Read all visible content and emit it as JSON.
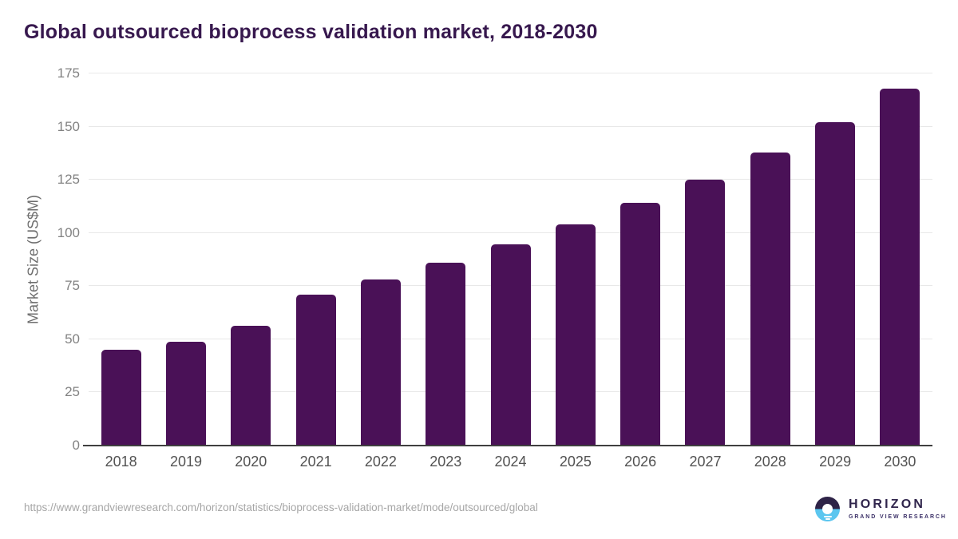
{
  "title": "Global outsourced bioprocess validation market, 2018-2030",
  "chart_data": {
    "type": "bar",
    "title": "Global outsourced bioprocess validation market, 2018-2030",
    "categories": [
      "2018",
      "2019",
      "2020",
      "2021",
      "2022",
      "2023",
      "2024",
      "2025",
      "2026",
      "2027",
      "2028",
      "2029",
      "2030"
    ],
    "values": [
      45,
      49,
      56.5,
      71,
      78,
      86,
      94.5,
      104,
      114,
      125,
      138,
      152,
      168
    ],
    "xlabel": "",
    "ylabel": "Market Size (US$M)",
    "ylim": [
      0,
      175
    ],
    "yticks": [
      0,
      25,
      50,
      75,
      100,
      125,
      150,
      175
    ],
    "grid": "horizontal",
    "legend_position": "none",
    "bar_color": "#4a1157"
  },
  "colors": {
    "title_text": "#37184e",
    "bar": "#4a1157",
    "gridline": "#e8e8e8",
    "axis_line": "#3f3f3f",
    "logo_navy": "#2e2347",
    "logo_blue": "#5cc6ef"
  },
  "footer": {
    "source_url": "https://www.grandviewresearch.com/horizon/statistics/bioprocess-validation-market/mode/outsourced/global",
    "logo": {
      "name": "HORIZON",
      "subtitle": "GRAND VIEW RESEARCH"
    }
  }
}
